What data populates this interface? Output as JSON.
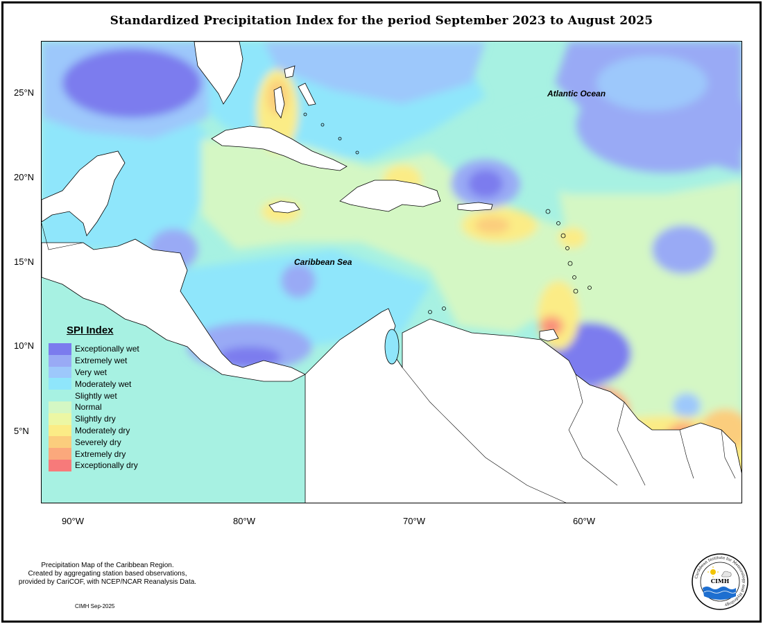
{
  "title": "Standardized Precipitation Index for the period September 2023 to August 2025",
  "map": {
    "ocean_labels": [
      "Atlantic Ocean",
      "Caribbean Sea"
    ],
    "lat_ticks": [
      "25°N",
      "20°N",
      "15°N",
      "10°N",
      "5°N"
    ],
    "lon_ticks": [
      "90°W",
      "80°W",
      "70°W",
      "60°W"
    ]
  },
  "legend": {
    "title": "SPI Index",
    "items": [
      {
        "label": "Exceptionally wet",
        "color": "#7b7bee"
      },
      {
        "label": "Extremely wet",
        "color": "#99aaf5"
      },
      {
        "label": "Very wet",
        "color": "#9dc8fb"
      },
      {
        "label": "Moderately wet",
        "color": "#8fe6fb"
      },
      {
        "label": "Slightly wet",
        "color": "#a7f1e2"
      },
      {
        "label": "Normal",
        "color": "#d4f7c4"
      },
      {
        "label": "Slightly dry",
        "color": "#ecf7a4"
      },
      {
        "label": "Moderately dry",
        "color": "#fbec86"
      },
      {
        "label": "Severely dry",
        "color": "#fbcd7d"
      },
      {
        "label": "Extremely dry",
        "color": "#fba87c"
      },
      {
        "label": "Exceptionally dry",
        "color": "#f77a7a"
      }
    ]
  },
  "caption": {
    "line1": "Precipitation Map of the Caribbean Region.",
    "line2": "Created by aggregating station based observations,",
    "line3": "provided by CariCOF, with NCEP/NCAR Reanalysis Data."
  },
  "credit": "CIMH Sep-2025",
  "logo": {
    "name": "CIMH",
    "ring_text": "Caribbean Institute for Meteorology and Hydrology"
  }
}
